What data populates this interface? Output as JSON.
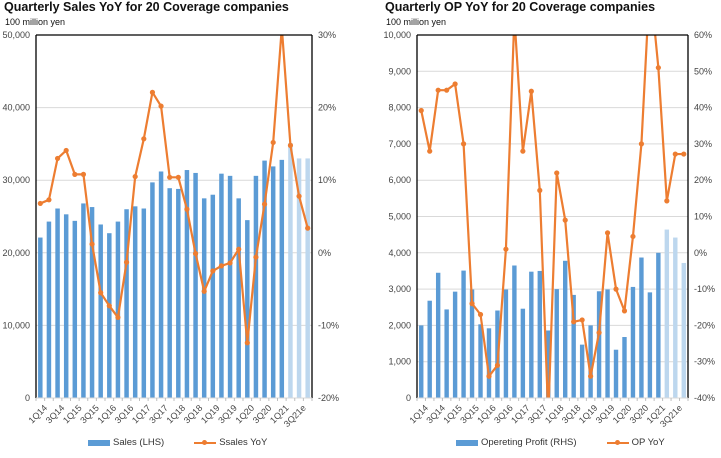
{
  "colors": {
    "bar_actual": "#5b9bd5",
    "bar_estimate": "#bdd7ee",
    "line": "#ed7d31",
    "grid": "#d9d9d9",
    "axis": "#000000"
  },
  "chart_data": [
    {
      "type": "bar",
      "title": "Quarterly Sales YoY for 20 Coverage companies",
      "unit_label": "100 million yen",
      "categories": [
        "1Q14",
        "2Q14",
        "3Q14",
        "4Q14",
        "1Q15",
        "2Q15",
        "3Q15",
        "4Q15",
        "1Q16",
        "2Q16",
        "3Q16",
        "4Q16",
        "1Q17",
        "2Q17",
        "3Q17",
        "4Q17",
        "1Q18",
        "2Q18",
        "3Q18",
        "4Q18",
        "1Q19",
        "2Q19",
        "3Q19",
        "4Q19",
        "1Q20",
        "2Q20",
        "3Q20",
        "4Q20",
        "1Q21",
        "2Q21e",
        "3Q21e",
        "4Q21e"
      ],
      "tick_labels": [
        "1Q14",
        "3Q14",
        "1Q15",
        "3Q15",
        "1Q16",
        "3Q16",
        "1Q17",
        "3Q17",
        "1Q18",
        "3Q18",
        "1Q19",
        "3Q19",
        "1Q20",
        "3Q20",
        "1Q21",
        "3Q21e"
      ],
      "estimate_from_index": 29,
      "series": [
        {
          "name": "Sales  (LHS)",
          "axis": "left",
          "kind": "bar",
          "values": [
            22100,
            24300,
            26100,
            25300,
            24400,
            26800,
            26300,
            23900,
            22700,
            24300,
            26000,
            26400,
            26100,
            29700,
            31200,
            28900,
            28800,
            31400,
            31000,
            27500,
            28000,
            30900,
            30600,
            27500,
            24500,
            30600,
            32700,
            31900,
            32800,
            35100,
            33000,
            33000
          ]
        },
        {
          "name": "Ssales YoY",
          "axis": "right",
          "kind": "line",
          "values": [
            6.8,
            7.3,
            13.0,
            14.1,
            10.8,
            10.8,
            1.2,
            -5.5,
            -7.3,
            -8.9,
            -1.3,
            10.5,
            15.7,
            22.1,
            20.2,
            10.4,
            10.4,
            6.0,
            -0.1,
            -5.3,
            -2.5,
            -1.8,
            -1.4,
            0.5,
            -12.4,
            -0.6,
            6.7,
            15.2,
            31.0,
            14.8,
            7.8,
            3.4
          ]
        }
      ],
      "y_left": {
        "min": 0,
        "max": 50000,
        "ticks": [
          "0",
          "10,000",
          "20,000",
          "30,000",
          "40,000",
          "50,000"
        ]
      },
      "y_right": {
        "min": -20,
        "max": 30,
        "ticks": [
          "-20%",
          "-10%",
          "0%",
          "10%",
          "20%",
          "30%"
        ]
      },
      "legend": [
        "Sales  (LHS)",
        "Ssales YoY"
      ],
      "legend_position": "bottom",
      "grid": true
    },
    {
      "type": "bar",
      "title": "Quarterly OP YoY for 20 Coverage companies",
      "unit_label": "100 million yen",
      "categories": [
        "1Q14",
        "2Q14",
        "3Q14",
        "4Q14",
        "1Q15",
        "2Q15",
        "3Q15",
        "4Q15",
        "1Q16",
        "2Q16",
        "3Q16",
        "4Q16",
        "1Q17",
        "2Q17",
        "3Q17",
        "4Q17",
        "1Q18",
        "2Q18",
        "3Q18",
        "4Q18",
        "1Q19",
        "2Q19",
        "3Q19",
        "4Q19",
        "1Q20",
        "2Q20",
        "3Q20",
        "4Q20",
        "1Q21",
        "2Q21e",
        "3Q21e",
        "4Q21e"
      ],
      "tick_labels": [
        "1Q14",
        "3Q14",
        "1Q15",
        "3Q15",
        "1Q16",
        "3Q16",
        "1Q17",
        "3Q17",
        "1Q18",
        "3Q18",
        "1Q19",
        "3Q19",
        "1Q20",
        "3Q20",
        "1Q21",
        "3Q21e"
      ],
      "estimate_from_index": 29,
      "series": [
        {
          "name": "Opereting Profit  (RHS)",
          "axis": "left",
          "kind": "bar",
          "values": [
            2000,
            2680,
            3450,
            2440,
            2930,
            3510,
            2990,
            2030,
            1920,
            2410,
            2990,
            3650,
            2460,
            3480,
            3500,
            1860,
            3000,
            3780,
            2840,
            1470,
            2000,
            2940,
            2990,
            1330,
            1680,
            3060,
            3870,
            2910,
            4000,
            4640,
            4420,
            3720
          ]
        },
        {
          "name": "OP YoY",
          "axis": "right",
          "kind": "line",
          "values": [
            39.2,
            28.0,
            44.8,
            44.8,
            46.5,
            30.0,
            -14.0,
            -17.0,
            -34.0,
            -31.0,
            1.0,
            65.0,
            28.0,
            44.5,
            17.2,
            -45.0,
            22.0,
            9.0,
            -19.0,
            -18.5,
            -34.0,
            -22.0,
            5.5,
            -10.0,
            -16.0,
            4.5,
            30.0,
            75.0,
            51.0,
            14.3,
            27.2,
            27.2
          ]
        }
      ],
      "y_left": {
        "min": 0,
        "max": 10000,
        "ticks": [
          "0",
          "1,000",
          "2,000",
          "3,000",
          "4,000",
          "5,000",
          "6,000",
          "7,000",
          "8,000",
          "9,000",
          "10,000"
        ]
      },
      "y_right": {
        "min": -40,
        "max": 60,
        "ticks": [
          "-40%",
          "-30%",
          "-20%",
          "-10%",
          "0%",
          "10%",
          "20%",
          "30%",
          "40%",
          "50%",
          "60%"
        ]
      },
      "legend": [
        "Opereting Profit  (RHS)",
        "OP YoY"
      ],
      "legend_position": "bottom",
      "grid": true
    }
  ]
}
